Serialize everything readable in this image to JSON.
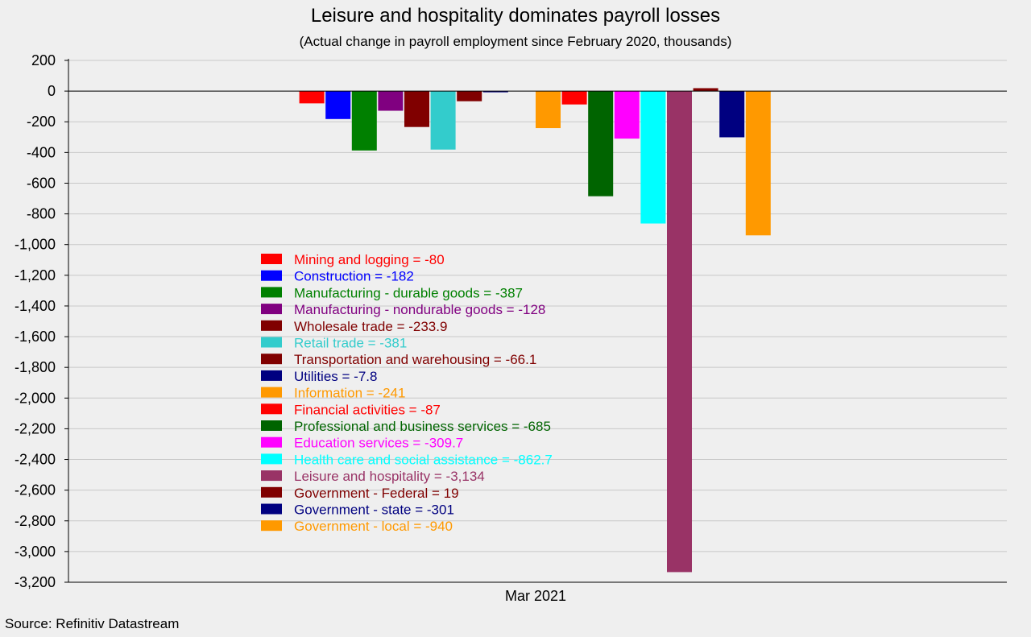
{
  "title": "Leisure and hospitality dominates payroll losses",
  "subtitle": "(Actual change in payroll employment since February 2020, thousands)",
  "source": "Source: Refinitiv Datastream",
  "chart_data": {
    "type": "bar",
    "title": "Leisure and hospitality dominates payroll losses",
    "subtitle": "(Actual change in payroll employment since February 2020, thousands)",
    "categories": [
      "Mar 2021"
    ],
    "ylim": [
      -3200,
      200
    ],
    "yticks": [
      200,
      0,
      -200,
      -400,
      -600,
      -800,
      -1000,
      -1200,
      -1400,
      -1600,
      -1800,
      -2000,
      -2200,
      -2400,
      -2600,
      -2800,
      -3000,
      -3200
    ],
    "ytick_labels": [
      "200",
      "0",
      "-200",
      "-400",
      "-600",
      "-800",
      "-1,000",
      "-1,200",
      "-1,400",
      "-1,600",
      "-1,800",
      "-2,000",
      "-2,200",
      "-2,400",
      "-2,600",
      "-2,800",
      "-3,000",
      "-3,200"
    ],
    "grid": true,
    "legend_placement": "center-left",
    "series": [
      {
        "name": "Mining and logging",
        "value": -80,
        "color": "#ff0000",
        "label": "Mining and logging = -80"
      },
      {
        "name": "Construction",
        "value": -182,
        "color": "#0000ff",
        "label": "Construction = -182"
      },
      {
        "name": "Manufacturing - durable goods",
        "value": -387,
        "color": "#008000",
        "label": "Manufacturing - durable goods = -387"
      },
      {
        "name": "Manufacturing - nondurable goods",
        "value": -128,
        "color": "#800080",
        "label": "Manufacturing - nondurable goods = -128"
      },
      {
        "name": "Wholesale trade",
        "value": -233.9,
        "color": "#800000",
        "label": "Wholesale trade = -233.9"
      },
      {
        "name": "Retail trade",
        "value": -381,
        "color": "#33cccc",
        "label": "Retail trade = -381"
      },
      {
        "name": "Transportation and warehousing",
        "value": -66.1,
        "color": "#800000",
        "label": "Transportation and warehousing = -66.1"
      },
      {
        "name": "Utilities",
        "value": -7.8,
        "color": "#000080",
        "label": "Utilities = -7.8"
      },
      {
        "name": "Information",
        "value": -241,
        "color": "#ff9900",
        "label": "Information = -241"
      },
      {
        "name": "Financial activities",
        "value": -87,
        "color": "#ff0000",
        "label": "Financial activities = -87"
      },
      {
        "name": "Professional and business services",
        "value": -685,
        "color": "#006400",
        "label": "Professional and business services = -685"
      },
      {
        "name": "Education services",
        "value": -309.7,
        "color": "#ff00ff",
        "label": "Education services = -309.7"
      },
      {
        "name": "Health care and social assistance",
        "value": -862.7,
        "color": "#00ffff",
        "label": "Health care and social assistance = -862.7"
      },
      {
        "name": "Leisure and hospitality",
        "value": -3134,
        "color": "#993366",
        "label": "Leisure and hospitality = -3,134"
      },
      {
        "name": "Government - Federal",
        "value": 19,
        "color": "#800000",
        "label": "Government - Federal = 19"
      },
      {
        "name": "Government - state",
        "value": -301,
        "color": "#000080",
        "label": "Government - state = -301"
      },
      {
        "name": "Government - local",
        "value": -940,
        "color": "#ff9900",
        "label": "Government - local = -940"
      }
    ]
  }
}
